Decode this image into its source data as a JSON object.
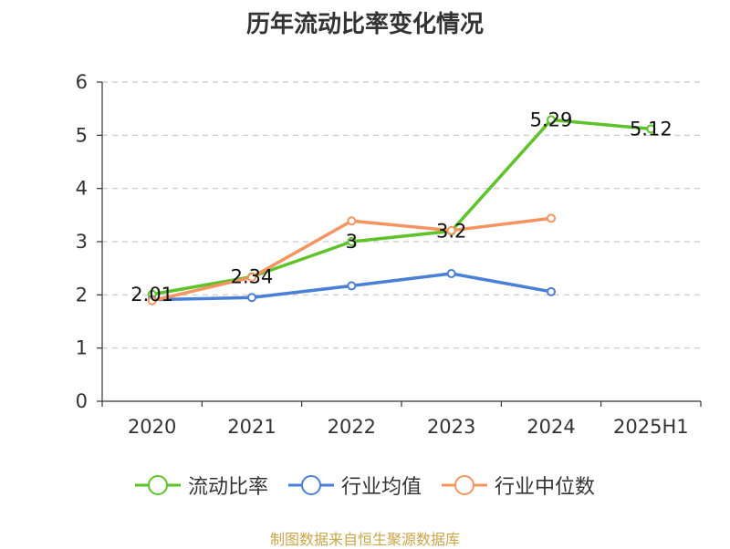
{
  "title": "历年流动比率变化情况",
  "footer": "制图数据来自恒生聚源数据库",
  "chart_data": {
    "type": "line",
    "categories": [
      "2020",
      "2021",
      "2022",
      "2023",
      "2024",
      "2025H1"
    ],
    "y_ticks": [
      0,
      1,
      2,
      3,
      4,
      5,
      6
    ],
    "ylim": [
      0,
      6
    ],
    "grid": "horizontal dashed",
    "legend_position": "bottom",
    "series": [
      {
        "name": "流动比率",
        "color": "#5ec22a",
        "values": [
          2.01,
          2.34,
          3.0,
          3.2,
          5.29,
          5.12
        ],
        "labels": [
          "2.01",
          "2.34",
          "3",
          "3.2",
          "5.29",
          "5.12"
        ]
      },
      {
        "name": "行业均值",
        "color": "#4a7fd6",
        "values": [
          1.91,
          1.95,
          2.17,
          2.4,
          2.06,
          null
        ]
      },
      {
        "name": "行业中位数",
        "color": "#f59460",
        "values": [
          1.89,
          2.33,
          3.39,
          3.21,
          3.44,
          null
        ]
      }
    ]
  }
}
